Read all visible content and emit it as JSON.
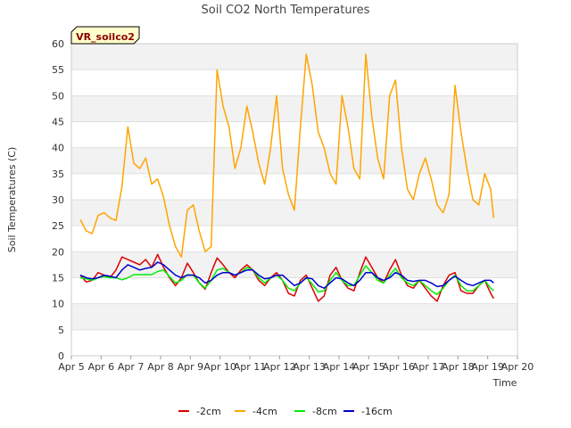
{
  "chart_data": {
    "type": "line",
    "title": "Soil CO2 North Temperatures",
    "xlabel": "Time",
    "ylabel": "Soil Temperatures (C)",
    "site_label": "VR_soilco2",
    "ylim": [
      0,
      60
    ],
    "xlim": [
      "Apr 5",
      "Apr 20"
    ],
    "x_ticks": [
      "Apr 5",
      "Apr 6",
      "Apr 7",
      "Apr 8",
      "Apr 9",
      "Apr 10",
      "Apr 11",
      "Apr 12",
      "Apr 13",
      "Apr 14",
      "Apr 15",
      "Apr 16",
      "Apr 17",
      "Apr 18",
      "Apr 19",
      "Apr 20"
    ],
    "y_ticks": [
      0,
      5,
      10,
      15,
      20,
      25,
      30,
      35,
      40,
      45,
      50,
      55,
      60
    ],
    "grid": "horizontal bands",
    "legend_position": "bottom",
    "x_day_of_april": [
      5.3,
      5.5,
      5.7,
      5.9,
      6.1,
      6.3,
      6.5,
      6.7,
      6.9,
      7.1,
      7.3,
      7.5,
      7.7,
      7.9,
      8.1,
      8.3,
      8.5,
      8.7,
      8.9,
      9.1,
      9.3,
      9.5,
      9.7,
      9.9,
      10.1,
      10.3,
      10.5,
      10.7,
      10.9,
      11.1,
      11.3,
      11.5,
      11.7,
      11.9,
      12.1,
      12.3,
      12.5,
      12.7,
      12.9,
      13.1,
      13.3,
      13.5,
      13.7,
      13.9,
      14.1,
      14.3,
      14.5,
      14.7,
      14.9,
      15.1,
      15.3,
      15.5,
      15.7,
      15.9,
      16.1,
      16.3,
      16.5,
      16.7,
      16.9,
      17.1,
      17.3,
      17.5,
      17.7,
      17.9,
      18.1,
      18.3,
      18.5,
      18.7,
      18.9,
      19.1,
      19.2
    ],
    "series": [
      {
        "name": "-2cm",
        "color": "#dd0000",
        "values": [
          15.5,
          14.2,
          14.5,
          16.0,
          15.5,
          15.0,
          16.5,
          19.0,
          18.5,
          18.0,
          17.5,
          18.5,
          17.0,
          19.5,
          17.0,
          15.0,
          13.5,
          15.0,
          17.8,
          16.0,
          14.0,
          12.8,
          16.0,
          18.8,
          17.5,
          16.0,
          15.0,
          16.5,
          17.5,
          16.5,
          14.5,
          13.5,
          15.0,
          16.0,
          14.5,
          12.0,
          11.5,
          14.5,
          15.5,
          13.0,
          10.5,
          11.5,
          15.5,
          17.0,
          14.5,
          13.0,
          12.5,
          16.0,
          19.0,
          17.0,
          15.0,
          14.0,
          16.5,
          18.5,
          15.5,
          13.5,
          13.0,
          14.5,
          13.0,
          11.5,
          10.5,
          13.5,
          15.5,
          16.0,
          12.5,
          12.0,
          12.0,
          13.5,
          14.5,
          12.0,
          11.0
        ]
      },
      {
        "name": "-4cm",
        "color": "#ffa500",
        "values": [
          26.2,
          24.0,
          23.5,
          27.0,
          27.5,
          26.5,
          26.0,
          32.5,
          44.0,
          37.0,
          36.0,
          38.0,
          33.0,
          34.0,
          30.5,
          25.0,
          21.0,
          19.0,
          28.0,
          29.0,
          24.0,
          20.0,
          21.0,
          55.0,
          48.0,
          44.0,
          36.0,
          40.0,
          48.0,
          43.0,
          37.0,
          33.0,
          40.0,
          50.0,
          36.0,
          31.0,
          28.0,
          44.0,
          58.0,
          52.0,
          43.0,
          40.0,
          35.0,
          33.0,
          50.0,
          44.0,
          36.0,
          34.0,
          58.0,
          46.0,
          38.0,
          34.0,
          50.0,
          53.0,
          40.0,
          32.0,
          30.0,
          35.0,
          38.0,
          34.0,
          29.0,
          27.5,
          31.0,
          52.0,
          43.0,
          36.0,
          30.0,
          29.0,
          35.0,
          32.0,
          26.5
        ]
      },
      {
        "name": "-8cm",
        "color": "#00ee00",
        "values": [
          15.0,
          14.8,
          14.5,
          15.0,
          15.2,
          15.0,
          15.0,
          14.6,
          15.0,
          15.6,
          15.6,
          15.6,
          15.6,
          16.2,
          16.5,
          15.2,
          14.0,
          14.5,
          15.6,
          15.5,
          14.0,
          13.0,
          14.5,
          16.5,
          16.8,
          16.0,
          15.5,
          16.0,
          17.0,
          16.5,
          15.0,
          14.0,
          15.0,
          15.5,
          14.5,
          13.0,
          12.5,
          14.0,
          15.0,
          13.8,
          12.3,
          12.5,
          14.5,
          16.0,
          14.5,
          13.5,
          13.5,
          15.5,
          17.3,
          16.0,
          14.5,
          14.0,
          15.5,
          16.8,
          15.0,
          14.0,
          13.5,
          14.5,
          13.5,
          12.5,
          11.8,
          13.0,
          14.5,
          15.5,
          13.5,
          12.5,
          12.5,
          13.5,
          14.5,
          13.0,
          12.5
        ]
      },
      {
        "name": "-16cm",
        "color": "#0000cc",
        "values": [
          15.5,
          15.0,
          14.8,
          15.0,
          15.5,
          15.3,
          15.0,
          16.5,
          17.5,
          17.0,
          16.5,
          16.8,
          17.0,
          18.0,
          17.5,
          16.5,
          15.5,
          15.0,
          15.5,
          15.5,
          15.0,
          14.0,
          14.5,
          15.5,
          16.0,
          16.0,
          15.5,
          16.0,
          16.5,
          16.5,
          15.5,
          14.8,
          15.0,
          15.5,
          15.5,
          14.5,
          13.5,
          14.0,
          15.0,
          14.8,
          13.5,
          13.0,
          14.0,
          15.0,
          14.8,
          14.0,
          13.5,
          14.5,
          16.0,
          16.0,
          15.0,
          14.5,
          15.0,
          16.0,
          15.5,
          14.5,
          14.3,
          14.5,
          14.5,
          14.0,
          13.3,
          13.5,
          14.5,
          15.3,
          14.5,
          13.8,
          13.5,
          14.0,
          14.5,
          14.5,
          14.0
        ]
      }
    ]
  }
}
